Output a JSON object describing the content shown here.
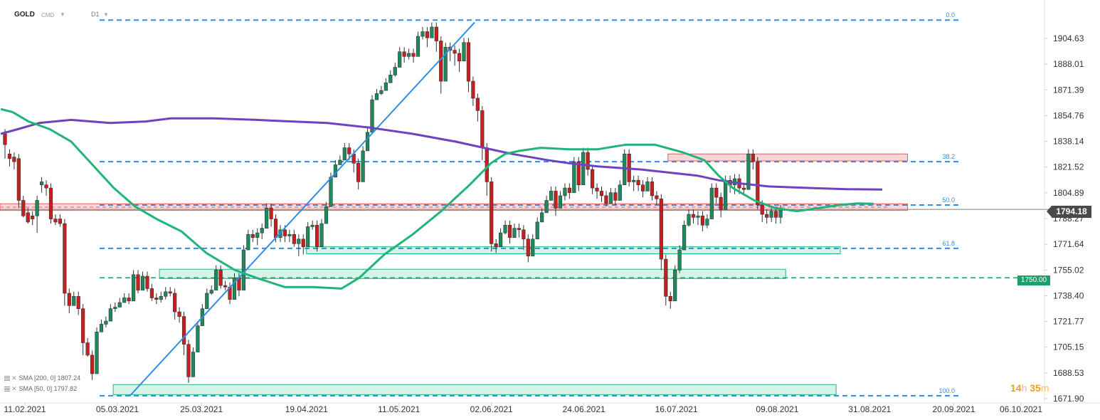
{
  "header": {
    "symbol": "GOLD",
    "source": "CMD",
    "interval": "D1"
  },
  "current_price": "1794.18",
  "level_label": "1750.00",
  "timer": {
    "hours": "14",
    "hours_unit": "h",
    "minutes": "35",
    "minutes_unit": "m"
  },
  "legend": {
    "sma200": "SMA [200, 0] 1807.24",
    "sma50": "SMA [50, 0] 1797.82"
  },
  "colors": {
    "bull": "#1e8a5c",
    "bear": "#c81e1e",
    "sma200": "#6f42c1",
    "sma50": "#1fb57a",
    "fib": "#2d8ee8",
    "support_zone": "#1fb57a",
    "resistance_zone": "#e06060"
  },
  "chart_data": {
    "type": "candlestick",
    "y_ticks": [
      "1904.63",
      "1888.01",
      "1871.39",
      "1854.76",
      "1838.14",
      "1821.52",
      "1804.89",
      "1788.27",
      "1771.64",
      "1755.02",
      "1738.40",
      "1721.77",
      "1705.15",
      "1688.53",
      "1671.90"
    ],
    "x_ticks": [
      "11.02.2021",
      "05.03.2021",
      "25.03.2021",
      "19.04.2021",
      "11.05.2021",
      "02.06.2021",
      "24.06.2021",
      "16.07.2021",
      "09.08.2021",
      "31.08.2021",
      "20.09.2021",
      "06.10.2021"
    ],
    "ylim": [
      1668,
      1921
    ],
    "fibonacci_levels": [
      {
        "label": "0.0",
        "price": 1916.5
      },
      {
        "label": "38.2",
        "price": 1825.0
      },
      {
        "label": "50.0",
        "price": 1797.0
      },
      {
        "label": "61.8",
        "price": 1769.0
      },
      {
        "label": "100.0",
        "price": 1673.8
      }
    ],
    "horizontal_level": 1750.0,
    "zones": [
      {
        "kind": "resistance",
        "from": "11.02.2021",
        "to": "09.09.2021",
        "low": 1793.5,
        "high": 1797.8
      },
      {
        "kind": "resistance",
        "from": "14.07.2021",
        "to": "09.09.2021",
        "low": 1825.5,
        "high": 1830.0
      },
      {
        "kind": "support",
        "from": "19.04.2021",
        "to": "24.08.2021",
        "low": 1765.5,
        "high": 1770.0
      },
      {
        "kind": "support",
        "from": "15.03.2021",
        "to": "11.08.2021",
        "low": 1749.5,
        "high": 1755.5
      },
      {
        "kind": "support",
        "from": "04.03.2021",
        "to": "23.08.2021",
        "low": 1674.5,
        "high": 1681.0
      }
    ],
    "trendline": {
      "from": [
        "08.03.2021",
        1673.8
      ],
      "to": [
        "29.05.2021",
        1915.0
      ]
    },
    "candles": [
      [
        1843,
        1836,
        1827
      ],
      [
        1830,
        1827,
        1822
      ],
      [
        1828,
        1825,
        1820
      ],
      [
        1827,
        1800,
        1795
      ],
      [
        1800,
        1790,
        1789
      ],
      [
        1792,
        1786,
        1785
      ],
      [
        1790,
        1788,
        1784
      ],
      [
        1790,
        1800,
        1779
      ],
      [
        1810,
        1812,
        1805
      ],
      [
        1810,
        1808,
        1803
      ],
      [
        1808,
        1788,
        1785
      ],
      [
        1788,
        1786,
        1784
      ],
      [
        1788,
        1785,
        1783
      ],
      [
        1785,
        1740,
        1732
      ],
      [
        1740,
        1732,
        1727
      ],
      [
        1732,
        1738,
        1733
      ],
      [
        1738,
        1730,
        1726
      ],
      [
        1730,
        1708,
        1700
      ],
      [
        1708,
        1700,
        1699
      ],
      [
        1700,
        1688,
        1684
      ],
      [
        1688,
        1715,
        1710
      ],
      [
        1715,
        1720,
        1715
      ],
      [
        1720,
        1722,
        1718
      ],
      [
        1722,
        1730,
        1727
      ],
      [
        1730,
        1731,
        1728
      ],
      [
        1731,
        1734,
        1732
      ],
      [
        1734,
        1737,
        1735
      ],
      [
        1737,
        1735,
        1733
      ],
      [
        1735,
        1752,
        1747
      ],
      [
        1752,
        1742,
        1740
      ],
      [
        1742,
        1751,
        1748
      ],
      [
        1751,
        1743,
        1741
      ],
      [
        1743,
        1737,
        1735
      ],
      [
        1737,
        1736,
        1733
      ],
      [
        1736,
        1738,
        1734
      ],
      [
        1738,
        1741,
        1736
      ],
      [
        1741,
        1740,
        1738
      ],
      [
        1740,
        1728,
        1723
      ],
      [
        1728,
        1725,
        1721
      ],
      [
        1725,
        1707,
        1700
      ],
      [
        1707,
        1686,
        1682
      ],
      [
        1686,
        1702,
        1700
      ],
      [
        1702,
        1719,
        1716
      ],
      [
        1719,
        1730,
        1727
      ],
      [
        1730,
        1740,
        1738
      ],
      [
        1740,
        1742,
        1739
      ],
      [
        1742,
        1755,
        1747
      ],
      [
        1755,
        1745,
        1743
      ],
      [
        1745,
        1744,
        1742
      ],
      [
        1744,
        1736,
        1733
      ],
      [
        1736,
        1750,
        1747
      ],
      [
        1750,
        1742,
        1738
      ],
      [
        1742,
        1768,
        1763
      ],
      [
        1768,
        1778,
        1774
      ],
      [
        1778,
        1776,
        1773
      ],
      [
        1776,
        1779,
        1771
      ],
      [
        1779,
        1782,
        1775
      ],
      [
        1782,
        1795,
        1792
      ],
      [
        1795,
        1788,
        1783
      ],
      [
        1788,
        1776,
        1773
      ],
      [
        1776,
        1781,
        1773
      ],
      [
        1781,
        1777,
        1773
      ],
      [
        1777,
        1778,
        1773
      ],
      [
        1778,
        1772,
        1770
      ],
      [
        1772,
        1775,
        1764
      ],
      [
        1775,
        1770,
        1765
      ],
      [
        1770,
        1783,
        1779
      ],
      [
        1783,
        1784,
        1781
      ],
      [
        1784,
        1770,
        1767
      ],
      [
        1770,
        1785,
        1780
      ],
      [
        1785,
        1796,
        1790
      ],
      [
        1796,
        1815,
        1810
      ],
      [
        1815,
        1823,
        1819
      ],
      [
        1823,
        1826,
        1824
      ],
      [
        1826,
        1834,
        1830
      ],
      [
        1834,
        1830,
        1826
      ],
      [
        1830,
        1824,
        1818
      ],
      [
        1824,
        1812,
        1807
      ],
      [
        1812,
        1832,
        1828
      ],
      [
        1832,
        1844,
        1841
      ],
      [
        1844,
        1865,
        1860
      ],
      [
        1865,
        1869,
        1865
      ],
      [
        1869,
        1871,
        1868
      ],
      [
        1871,
        1876,
        1873
      ],
      [
        1876,
        1881,
        1877
      ],
      [
        1881,
        1886,
        1880
      ],
      [
        1886,
        1896,
        1893
      ],
      [
        1896,
        1893,
        1889
      ],
      [
        1893,
        1895,
        1891
      ],
      [
        1895,
        1893,
        1889
      ],
      [
        1893,
        1906,
        1903
      ],
      [
        1906,
        1909,
        1904
      ],
      [
        1909,
        1905,
        1899
      ],
      [
        1905,
        1912,
        1906
      ],
      [
        1912,
        1903,
        1896
      ],
      [
        1903,
        1877,
        1869
      ],
      [
        1877,
        1899,
        1897
      ],
      [
        1899,
        1897,
        1890
      ],
      [
        1897,
        1895,
        1887
      ],
      [
        1895,
        1890,
        1883
      ],
      [
        1890,
        1902,
        1898
      ],
      [
        1902,
        1877,
        1870
      ],
      [
        1877,
        1866,
        1861
      ],
      [
        1866,
        1858,
        1851
      ],
      [
        1858,
        1834,
        1826
      ],
      [
        1834,
        1812,
        1803
      ],
      [
        1812,
        1772,
        1767
      ],
      [
        1772,
        1770,
        1766
      ],
      [
        1770,
        1779,
        1773
      ],
      [
        1779,
        1784,
        1778
      ],
      [
        1784,
        1776,
        1772
      ],
      [
        1776,
        1782,
        1776
      ],
      [
        1782,
        1781,
        1776
      ],
      [
        1781,
        1775,
        1768
      ],
      [
        1775,
        1764,
        1760
      ],
      [
        1764,
        1775,
        1772
      ],
      [
        1775,
        1786,
        1780
      ],
      [
        1786,
        1792,
        1788
      ],
      [
        1792,
        1800,
        1795
      ],
      [
        1800,
        1806,
        1801
      ],
      [
        1806,
        1795,
        1790
      ],
      [
        1795,
        1803,
        1795
      ],
      [
        1803,
        1808,
        1800
      ],
      [
        1808,
        1805,
        1801
      ],
      [
        1805,
        1825,
        1821
      ],
      [
        1825,
        1810,
        1806
      ],
      [
        1810,
        1831,
        1826
      ],
      [
        1831,
        1820,
        1816
      ],
      [
        1820,
        1808,
        1804
      ],
      [
        1808,
        1806,
        1801
      ],
      [
        1806,
        1803,
        1799
      ],
      [
        1803,
        1798,
        1796
      ],
      [
        1798,
        1805,
        1799
      ],
      [
        1805,
        1800,
        1797
      ],
      [
        1800,
        1810,
        1806
      ],
      [
        1810,
        1830,
        1826
      ],
      [
        1830,
        1812,
        1809
      ],
      [
        1812,
        1813,
        1806
      ],
      [
        1813,
        1810,
        1806
      ],
      [
        1810,
        1806,
        1802
      ],
      [
        1806,
        1812,
        1808
      ],
      [
        1812,
        1803,
        1800
      ],
      [
        1803,
        1801,
        1797
      ],
      [
        1801,
        1762,
        1755
      ],
      [
        1762,
        1738,
        1732
      ],
      [
        1738,
        1735,
        1730
      ],
      [
        1735,
        1755,
        1754
      ],
      [
        1755,
        1768,
        1753
      ],
      [
        1768,
        1784,
        1774
      ],
      [
        1784,
        1791,
        1783
      ],
      [
        1791,
        1789,
        1785
      ],
      [
        1789,
        1790,
        1784
      ],
      [
        1790,
        1784,
        1780
      ],
      [
        1784,
        1788,
        1782
      ],
      [
        1788,
        1808,
        1800
      ],
      [
        1808,
        1802,
        1798
      ],
      [
        1802,
        1794,
        1789
      ],
      [
        1794,
        1813,
        1808
      ],
      [
        1813,
        1810,
        1805
      ],
      [
        1810,
        1814,
        1804
      ],
      [
        1814,
        1808,
        1804
      ],
      [
        1808,
        1807,
        1803
      ],
      [
        1807,
        1830,
        1826
      ],
      [
        1830,
        1825,
        1820
      ],
      [
        1825,
        1797,
        1794
      ],
      [
        1797,
        1791,
        1786
      ],
      [
        1791,
        1789,
        1785
      ],
      [
        1789,
        1793,
        1786
      ],
      [
        1793,
        1789,
        1785
      ],
      [
        1789,
        1794,
        1785
      ]
    ],
    "sma200_points": [
      [
        1,
        1843
      ],
      [
        25,
        1846
      ],
      [
        55,
        1850
      ],
      [
        100,
        1852
      ],
      [
        155,
        1850
      ],
      [
        205,
        1851
      ],
      [
        240,
        1853
      ],
      [
        300,
        1853
      ],
      [
        360,
        1852
      ],
      [
        410,
        1851
      ],
      [
        460,
        1850
      ],
      [
        520,
        1847
      ],
      [
        580,
        1843
      ],
      [
        640,
        1838
      ],
      [
        680,
        1834
      ],
      [
        720,
        1830
      ],
      [
        770,
        1826
      ],
      [
        800,
        1824
      ],
      [
        840,
        1822
      ],
      [
        900,
        1820
      ],
      [
        940,
        1818
      ],
      [
        980,
        1816
      ],
      [
        1010,
        1813
      ],
      [
        1040,
        1811
      ],
      [
        1080,
        1809
      ],
      [
        1140,
        1808
      ],
      [
        1190,
        1807.2
      ],
      [
        1240,
        1807
      ]
    ],
    "sma50_points": [
      [
        1,
        1859
      ],
      [
        18,
        1857
      ],
      [
        40,
        1851
      ],
      [
        70,
        1846
      ],
      [
        100,
        1838
      ],
      [
        130,
        1823
      ],
      [
        160,
        1808
      ],
      [
        190,
        1796
      ],
      [
        220,
        1788
      ],
      [
        255,
        1780
      ],
      [
        290,
        1766
      ],
      [
        330,
        1755
      ],
      [
        360,
        1750
      ],
      [
        400,
        1744
      ],
      [
        440,
        1744
      ],
      [
        480,
        1743
      ],
      [
        505,
        1750
      ],
      [
        540,
        1765
      ],
      [
        580,
        1778
      ],
      [
        620,
        1793
      ],
      [
        660,
        1810
      ],
      [
        690,
        1824
      ],
      [
        710,
        1830
      ],
      [
        730,
        1832
      ],
      [
        760,
        1834
      ],
      [
        800,
        1833
      ],
      [
        840,
        1833
      ],
      [
        880,
        1836
      ],
      [
        920,
        1836
      ],
      [
        960,
        1831
      ],
      [
        990,
        1826
      ],
      [
        1010,
        1816
      ],
      [
        1030,
        1808
      ],
      [
        1060,
        1800
      ],
      [
        1090,
        1795
      ],
      [
        1120,
        1793
      ],
      [
        1150,
        1795
      ],
      [
        1180,
        1797
      ],
      [
        1205,
        1798
      ],
      [
        1228,
        1797.8
      ]
    ]
  }
}
